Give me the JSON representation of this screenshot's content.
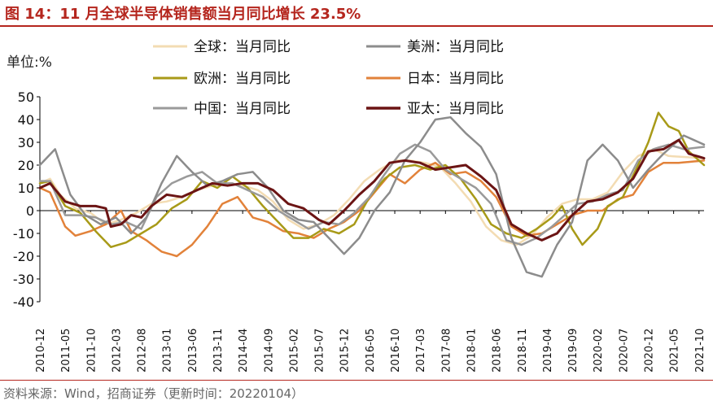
{
  "header": {
    "title": "图 14：11 月全球半导体销售额当月同比增长 23.5%"
  },
  "footer": {
    "source": "资料来源：Wind，招商证券（更新时间：20220104）"
  },
  "chart_data": {
    "type": "line",
    "title": "11 月全球半导体销售额当月同比增长 23.5%",
    "ylabel": "单位:%",
    "xlabel": "",
    "ylim": [
      -40,
      50
    ],
    "yticks": [
      -40,
      -30,
      -20,
      -10,
      0,
      10,
      20,
      30,
      40,
      50
    ],
    "grid": false,
    "legend": "top",
    "x_start": "2010-12",
    "x_tick_labels": [
      "2010-12",
      "2011-05",
      "2011-10",
      "2012-03",
      "2012-08",
      "2013-01",
      "2013-06",
      "2013-11",
      "2014-04",
      "2014-09",
      "2015-02",
      "2015-07",
      "2015-12",
      "2016-05",
      "2016-10",
      "2017-03",
      "2017-08",
      "2018-01",
      "2018-06",
      "2018-11",
      "2019-04",
      "2019-09",
      "2020-02",
      "2020-07",
      "2020-12",
      "2021-05",
      "2021-10"
    ],
    "series": [
      {
        "name": "全球：当月同比",
        "color": "#f3dcb3",
        "width": 2.5,
        "anchors": [
          [
            0,
            12
          ],
          [
            2,
            14
          ],
          [
            4,
            7
          ],
          [
            7,
            1
          ],
          [
            10,
            -1
          ],
          [
            13,
            -6
          ],
          [
            16,
            -4
          ],
          [
            19,
            -1
          ],
          [
            22,
            3
          ],
          [
            25,
            4
          ],
          [
            28,
            6
          ],
          [
            31,
            9
          ],
          [
            34,
            11
          ],
          [
            37,
            12
          ],
          [
            40,
            11
          ],
          [
            43,
            9
          ],
          [
            46,
            4
          ],
          [
            49,
            -4
          ],
          [
            52,
            -8
          ],
          [
            55,
            -6
          ],
          [
            58,
            -2
          ],
          [
            61,
            5
          ],
          [
            64,
            13
          ],
          [
            67,
            18
          ],
          [
            70,
            22
          ],
          [
            73,
            22
          ],
          [
            76,
            21
          ],
          [
            79,
            19
          ],
          [
            82,
            12
          ],
          [
            85,
            4
          ],
          [
            88,
            -7
          ],
          [
            91,
            -13
          ],
          [
            94,
            -15
          ],
          [
            97,
            -11
          ],
          [
            100,
            -3
          ],
          [
            103,
            3
          ],
          [
            106,
            5
          ],
          [
            109,
            5
          ],
          [
            112,
            8
          ],
          [
            115,
            17
          ],
          [
            118,
            24
          ],
          [
            121,
            27
          ],
          [
            124,
            24
          ],
          [
            131,
            23
          ]
        ]
      },
      {
        "name": "美洲：当月同比",
        "color": "#8c8c8c",
        "width": 2.5,
        "anchors": [
          [
            0,
            20
          ],
          [
            3,
            27
          ],
          [
            6,
            7
          ],
          [
            9,
            -2
          ],
          [
            12,
            -6
          ],
          [
            15,
            -3
          ],
          [
            18,
            -10
          ],
          [
            21,
            -3
          ],
          [
            24,
            12
          ],
          [
            27,
            24
          ],
          [
            30,
            17
          ],
          [
            33,
            11
          ],
          [
            36,
            13
          ],
          [
            39,
            16
          ],
          [
            42,
            17
          ],
          [
            45,
            10
          ],
          [
            48,
            0
          ],
          [
            51,
            -4
          ],
          [
            54,
            -5
          ],
          [
            57,
            -12
          ],
          [
            60,
            -19
          ],
          [
            63,
            -12
          ],
          [
            66,
            0
          ],
          [
            69,
            8
          ],
          [
            72,
            22
          ],
          [
            75,
            30
          ],
          [
            78,
            40
          ],
          [
            81,
            41
          ],
          [
            84,
            34
          ],
          [
            87,
            28
          ],
          [
            90,
            16
          ],
          [
            93,
            -12
          ],
          [
            96,
            -27
          ],
          [
            99,
            -29
          ],
          [
            102,
            -15
          ],
          [
            105,
            -5
          ],
          [
            108,
            22
          ],
          [
            111,
            29
          ],
          [
            114,
            22
          ],
          [
            117,
            10
          ],
          [
            120,
            18
          ],
          [
            123,
            25
          ],
          [
            127,
            33
          ],
          [
            131,
            29
          ]
        ]
      },
      {
        "name": "欧洲：当月同比",
        "color": "#a89a18",
        "width": 2.5,
        "anchors": [
          [
            0,
            12
          ],
          [
            2,
            13
          ],
          [
            5,
            2
          ],
          [
            8,
            -1
          ],
          [
            11,
            -9
          ],
          [
            14,
            -16
          ],
          [
            17,
            -14
          ],
          [
            20,
            -10
          ],
          [
            23,
            -6
          ],
          [
            26,
            1
          ],
          [
            29,
            5
          ],
          [
            32,
            13
          ],
          [
            35,
            10
          ],
          [
            38,
            15
          ],
          [
            41,
            10
          ],
          [
            44,
            2
          ],
          [
            47,
            -5
          ],
          [
            50,
            -12
          ],
          [
            53,
            -12
          ],
          [
            56,
            -8
          ],
          [
            59,
            -10
          ],
          [
            62,
            -6
          ],
          [
            65,
            6
          ],
          [
            68,
            14
          ],
          [
            71,
            19
          ],
          [
            74,
            20
          ],
          [
            77,
            18
          ],
          [
            80,
            20
          ],
          [
            83,
            14
          ],
          [
            86,
            5
          ],
          [
            89,
            -6
          ],
          [
            92,
            -10
          ],
          [
            95,
            -12
          ],
          [
            98,
            -8
          ],
          [
            101,
            -3
          ],
          [
            103,
            2
          ],
          [
            105,
            -8
          ],
          [
            107,
            -15
          ],
          [
            110,
            -8
          ],
          [
            112,
            2
          ],
          [
            115,
            6
          ],
          [
            118,
            20
          ],
          [
            120,
            30
          ],
          [
            122,
            43
          ],
          [
            124,
            37
          ],
          [
            126,
            35
          ],
          [
            128,
            26
          ],
          [
            131,
            20
          ]
        ]
      },
      {
        "name": "日本：当月同比",
        "color": "#e2823a",
        "width": 2.5,
        "anchors": [
          [
            0,
            10
          ],
          [
            2,
            8
          ],
          [
            5,
            -7
          ],
          [
            7,
            -11
          ],
          [
            10,
            -9
          ],
          [
            13,
            -6
          ],
          [
            16,
            0
          ],
          [
            18,
            -9
          ],
          [
            21,
            -13
          ],
          [
            24,
            -18
          ],
          [
            27,
            -20
          ],
          [
            30,
            -15
          ],
          [
            33,
            -7
          ],
          [
            36,
            3
          ],
          [
            39,
            6
          ],
          [
            42,
            -3
          ],
          [
            45,
            -5
          ],
          [
            48,
            -9
          ],
          [
            51,
            -10
          ],
          [
            54,
            -12
          ],
          [
            57,
            -8
          ],
          [
            60,
            -5
          ],
          [
            63,
            0
          ],
          [
            66,
            8
          ],
          [
            69,
            16
          ],
          [
            72,
            12
          ],
          [
            75,
            18
          ],
          [
            78,
            21
          ],
          [
            81,
            16
          ],
          [
            84,
            17
          ],
          [
            87,
            13
          ],
          [
            90,
            6
          ],
          [
            93,
            -7
          ],
          [
            96,
            -11
          ],
          [
            99,
            -10
          ],
          [
            102,
            -6
          ],
          [
            105,
            -2
          ],
          [
            108,
            0
          ],
          [
            111,
            0
          ],
          [
            114,
            5
          ],
          [
            117,
            7
          ],
          [
            120,
            17
          ],
          [
            123,
            21
          ],
          [
            126,
            21
          ],
          [
            131,
            22
          ]
        ]
      },
      {
        "name": "中国：当月同比",
        "color": "#9a9a9a",
        "width": 2.5,
        "anchors": [
          [
            0,
            13
          ],
          [
            2,
            13
          ],
          [
            5,
            -2
          ],
          [
            8,
            -2
          ],
          [
            11,
            -3
          ],
          [
            14,
            -6
          ],
          [
            17,
            -5
          ],
          [
            20,
            -8
          ],
          [
            23,
            6
          ],
          [
            26,
            12
          ],
          [
            29,
            15
          ],
          [
            32,
            17
          ],
          [
            35,
            12
          ],
          [
            38,
            12
          ],
          [
            41,
            9
          ],
          [
            44,
            6
          ],
          [
            47,
            0
          ],
          [
            50,
            -4
          ],
          [
            53,
            -8
          ],
          [
            56,
            -5
          ],
          [
            59,
            -6
          ],
          [
            62,
            -1
          ],
          [
            65,
            6
          ],
          [
            68,
            16
          ],
          [
            71,
            25
          ],
          [
            74,
            29
          ],
          [
            77,
            26
          ],
          [
            80,
            18
          ],
          [
            83,
            14
          ],
          [
            86,
            10
          ],
          [
            89,
            3
          ],
          [
            92,
            -13
          ],
          [
            95,
            -15
          ],
          [
            98,
            -12
          ],
          [
            101,
            -7
          ],
          [
            103,
            -3
          ],
          [
            106,
            3
          ],
          [
            109,
            4
          ],
          [
            112,
            7
          ],
          [
            115,
            9
          ],
          [
            118,
            22
          ],
          [
            121,
            27
          ],
          [
            124,
            29
          ],
          [
            127,
            27
          ],
          [
            131,
            28
          ]
        ]
      },
      {
        "name": "亚太：当月同比",
        "color": "#6b1414",
        "width": 3,
        "anchors": [
          [
            0,
            10
          ],
          [
            2,
            12
          ],
          [
            5,
            4
          ],
          [
            8,
            2
          ],
          [
            11,
            2
          ],
          [
            13,
            1
          ],
          [
            14,
            -7
          ],
          [
            16,
            -6
          ],
          [
            18,
            -2
          ],
          [
            20,
            -3
          ],
          [
            22,
            2
          ],
          [
            25,
            7
          ],
          [
            28,
            6
          ],
          [
            31,
            9
          ],
          [
            34,
            12
          ],
          [
            37,
            11
          ],
          [
            40,
            12
          ],
          [
            43,
            12
          ],
          [
            46,
            9
          ],
          [
            49,
            3
          ],
          [
            52,
            1
          ],
          [
            55,
            -4
          ],
          [
            57,
            -6
          ],
          [
            60,
            0
          ],
          [
            63,
            7
          ],
          [
            66,
            13
          ],
          [
            69,
            21
          ],
          [
            72,
            22
          ],
          [
            75,
            21
          ],
          [
            78,
            18
          ],
          [
            81,
            19
          ],
          [
            84,
            20
          ],
          [
            87,
            15
          ],
          [
            90,
            9
          ],
          [
            93,
            -6
          ],
          [
            96,
            -10
          ],
          [
            99,
            -13
          ],
          [
            102,
            -10
          ],
          [
            105,
            -2
          ],
          [
            108,
            4
          ],
          [
            111,
            5
          ],
          [
            114,
            8
          ],
          [
            117,
            14
          ],
          [
            120,
            26
          ],
          [
            123,
            27
          ],
          [
            126,
            31
          ],
          [
            128,
            25
          ],
          [
            131,
            23
          ]
        ]
      }
    ]
  }
}
